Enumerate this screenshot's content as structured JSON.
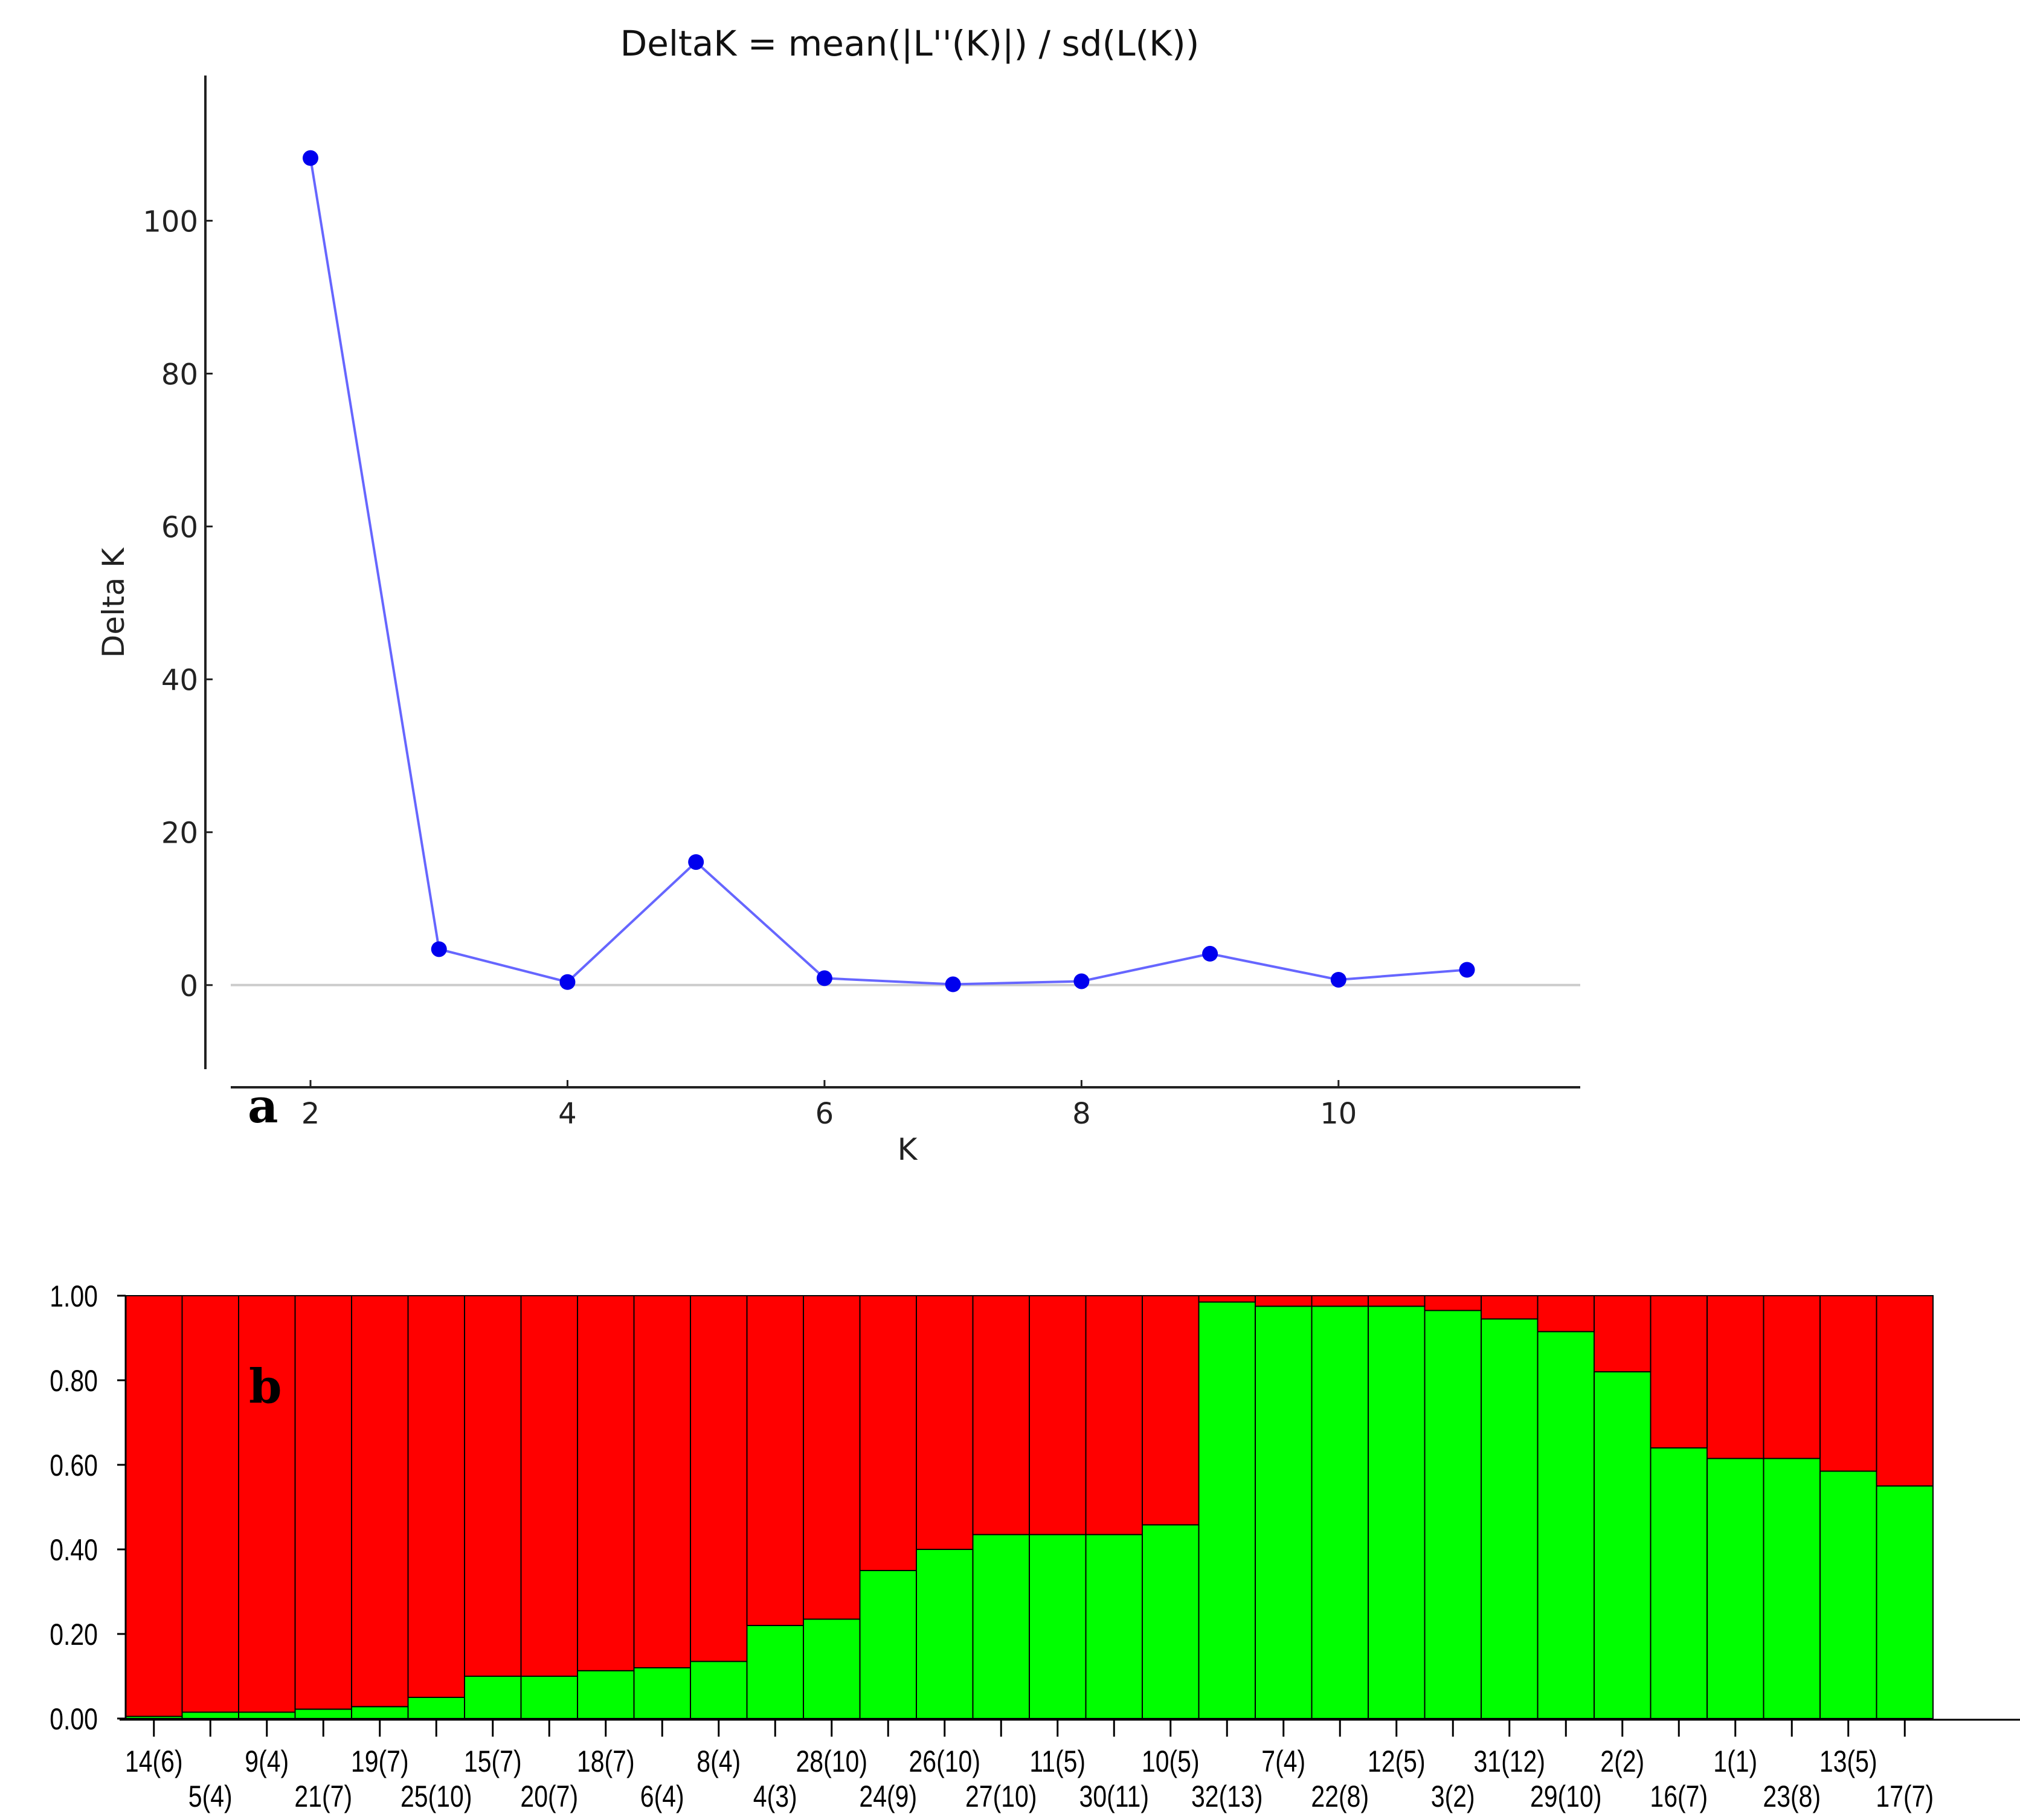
{
  "chart_data": [
    {
      "type": "line",
      "panel_label": "a",
      "title": "DeltaK = mean(|L''(K)|) / sd(L(K))",
      "xlabel": "K",
      "ylabel": "Delta K",
      "x": [
        2,
        3,
        4,
        5,
        6,
        7,
        8,
        9,
        10,
        11
      ],
      "y": [
        108.2,
        4.7,
        0.4,
        16.1,
        0.9,
        0.1,
        0.5,
        4.1,
        0.7,
        2.0
      ],
      "xlim": [
        0.9,
        11.9
      ],
      "ylim": [
        -11,
        119
      ],
      "xticks": [
        2,
        4,
        6,
        8,
        10
      ],
      "yticks": [
        0,
        20,
        40,
        60,
        80,
        100
      ],
      "xtick_labels": [
        "2",
        "4",
        "6",
        "8",
        "10"
      ],
      "ytick_labels": [
        "0",
        "20",
        "40",
        "60",
        "80",
        "100"
      ],
      "zero_line": true,
      "grid": false,
      "line_color": "#6666ff",
      "marker_color": "#0000ee"
    },
    {
      "type": "bar",
      "stacked": true,
      "panel_label": "b",
      "ylim": [
        0,
        1
      ],
      "yticks": [
        0,
        0.2,
        0.4,
        0.6,
        0.8,
        1.0
      ],
      "ytick_labels": [
        "0.00",
        "0.20",
        "0.40",
        "0.60",
        "0.80",
        "1.00"
      ],
      "categories": [
        "14(6)",
        "5(4)",
        "9(4)",
        "21(7)",
        "19(7)",
        "25(10)",
        "15(7)",
        "20(7)",
        "18(7)",
        "6(4)",
        "8(4)",
        "4(3)",
        "28(10)",
        "24(9)",
        "26(10)",
        "27(10)",
        "11(5)",
        "30(11)",
        "10(5)",
        "32(13)",
        "7(4)",
        "22(8)",
        "12(5)",
        "3(2)",
        "31(12)",
        "29(10)",
        "2(2)",
        "16(7)",
        "1(1)",
        "23(8)",
        "13(5)",
        "17(7)"
      ],
      "series": [
        {
          "color": "#00ff00",
          "values": [
            0.005,
            0.015,
            0.015,
            0.022,
            0.028,
            0.05,
            0.1,
            0.1,
            0.113,
            0.12,
            0.135,
            0.22,
            0.235,
            0.35,
            0.4,
            0.435,
            0.435,
            0.435,
            0.458,
            0.985,
            0.975,
            0.975,
            0.975,
            0.965,
            0.945,
            0.915,
            0.82,
            0.64,
            0.615,
            0.615,
            0.585,
            0.55
          ]
        },
        {
          "color": "#ff0000",
          "values": [
            0.995,
            0.985,
            0.985,
            0.978,
            0.972,
            0.95,
            0.9,
            0.9,
            0.887,
            0.88,
            0.865,
            0.78,
            0.765,
            0.65,
            0.6,
            0.565,
            0.565,
            0.565,
            0.542,
            0.015,
            0.025,
            0.025,
            0.025,
            0.035,
            0.055,
            0.085,
            0.18,
            0.36,
            0.385,
            0.385,
            0.415,
            0.45
          ]
        }
      ]
    }
  ]
}
